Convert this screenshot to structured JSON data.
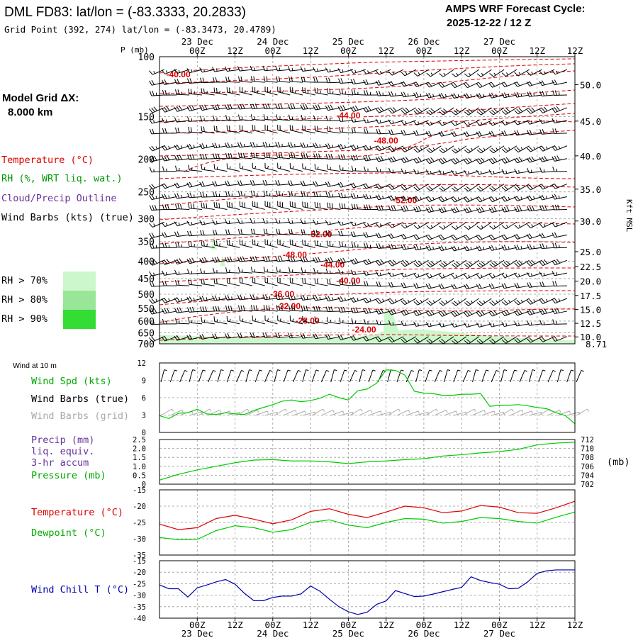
{
  "header": {
    "title": "DML FD83:  lat/lon = (-83.3333, 20.2833)",
    "subtitle": "Grid Point (392, 274) lat/lon = (-83.3473, 20.4789)",
    "forecast_label": "AMPS WRF Forecast Cycle:",
    "forecast_cycle": "2025-12-22 / 12  Z",
    "model_grid_label": "Model Grid ΔX:",
    "model_grid_value": "8.000 km"
  },
  "colors": {
    "temperature": "#dd0000",
    "rh": "#009900",
    "cloud": "#663399",
    "wind": "#000000",
    "wind_grid": "#aaaaaa",
    "dewpoint": "#00cc00",
    "windchill": "#0000aa",
    "grid": "#999999",
    "rh70": "#ccf7cc",
    "rh80": "#99e699",
    "rh90": "#33dd33"
  },
  "legend_upper": {
    "temperature": "Temperature (°C)",
    "rh": "RH (%, WRT liq. wat.)",
    "cloud": "Cloud/Precip Outline",
    "wind": "Wind Barbs (kts) (true)",
    "rh70": "RH > 70%",
    "rh80": "RH > 80%",
    "rh90": "RH > 90%"
  },
  "legend_lower": {
    "wind10m": "Wind at 10 m",
    "windspd": "Wind Spd (kts)",
    "windbarbs_true": "Wind Barbs (true)",
    "windbarbs_grid": "Wind Barbs (grid)",
    "precip": "Precip (mm)",
    "liq": "liq. equiv.",
    "accum": "3-hr accum",
    "pressure": "Pressure (mb)",
    "temperature": "Temperature (°C)",
    "dewpoint": "Dewpoint (°C)",
    "windchill": "Wind Chill T (°C)",
    "mb_unit": "(mb)"
  },
  "chart_data": {
    "type": "line",
    "time_axis": {
      "hours_range": [
        -6,
        126
      ],
      "tick_hours": [
        6,
        18,
        30,
        42,
        54,
        66,
        78,
        90,
        102,
        114,
        126
      ],
      "tick_labels": [
        "00Z",
        "12Z",
        "00Z",
        "12Z",
        "00Z",
        "12Z",
        "00Z",
        "12Z",
        "00Z",
        "12Z",
        "12Z"
      ],
      "date_hours": [
        6,
        30,
        54,
        78,
        102
      ],
      "date_labels": [
        "23 Dec",
        "24 Dec",
        "25 Dec",
        "26 Dec",
        "27 Dec"
      ]
    },
    "upper_panel": {
      "ylabel": "P (mb)",
      "p_range": [
        700,
        100
      ],
      "p_ticks": [
        100,
        150,
        200,
        250,
        300,
        350,
        400,
        450,
        500,
        550,
        600,
        650,
        700
      ],
      "kft_ticks": [
        50.0,
        45.0,
        40.0,
        35.0,
        30.0,
        25.0,
        22.5,
        20.0,
        17.5,
        15.0,
        12.5,
        10.0
      ],
      "kft_tick_labels": [
        "50.0",
        "45.0",
        "40.0",
        "35.0",
        "30.0",
        "25.0",
        "22.5",
        "20.0",
        "17.5",
        "15.0",
        "12.5",
        "10.0"
      ],
      "kft_surface_label": "8.71",
      "right_label": "Kft MSL",
      "temp_labels": [
        {
          "text": "-40.00",
          "hour": 0,
          "p": 115
        },
        {
          "text": "-44.00",
          "hour": 54,
          "p": 152
        },
        {
          "text": "-48.00",
          "hour": 66,
          "p": 180
        },
        {
          "text": "-52.00",
          "hour": 72,
          "p": 270
        },
        {
          "text": "-52.00",
          "hour": 45,
          "p": 340
        },
        {
          "text": "-48.00",
          "hour": 37,
          "p": 390
        },
        {
          "text": "-44.00",
          "hour": 49,
          "p": 418
        },
        {
          "text": "-40.00",
          "hour": 54,
          "p": 465
        },
        {
          "text": "-36.00",
          "hour": 33,
          "p": 510
        },
        {
          "text": "-32.00",
          "hour": 35,
          "p": 553
        },
        {
          "text": "-28.00",
          "hour": 41,
          "p": 610
        },
        {
          "text": "-24.00",
          "hour": 59,
          "p": 648
        }
      ]
    },
    "wind_panel": {
      "ylim": [
        0,
        12
      ],
      "yticks": [
        0,
        3,
        6,
        9,
        12
      ],
      "hours": [
        -6,
        -3,
        0,
        3,
        6,
        9,
        12,
        15,
        18,
        21,
        24,
        27,
        30,
        33,
        36,
        39,
        42,
        45,
        48,
        51,
        54,
        57,
        60,
        63,
        66,
        69,
        72,
        75,
        78,
        81,
        84,
        87,
        90,
        93,
        96,
        99,
        102,
        105,
        108,
        111,
        114,
        117,
        120,
        123,
        126
      ],
      "wind_speed": [
        2.9,
        2.4,
        3.3,
        3.4,
        4.0,
        3.2,
        3.1,
        3.4,
        3.2,
        3.1,
        3.8,
        4.3,
        4.8,
        5.4,
        5.6,
        5.3,
        5.5,
        5.9,
        6.6,
        6.0,
        5.6,
        7.2,
        7.5,
        8.5,
        10.8,
        10.7,
        9.9,
        7.1,
        6.8,
        6.7,
        6.4,
        6.4,
        6.6,
        6.6,
        6.7,
        4.5,
        4.7,
        4.7,
        4.8,
        4.6,
        4.3,
        4.1,
        3.4,
        2.9,
        1.5
      ]
    },
    "pressure_panel": {
      "precip_ylim": [
        0,
        2.5
      ],
      "precip_ticks": [
        0,
        0.5,
        1.0,
        1.5,
        2.0,
        2.5
      ],
      "precip_tick_labels": [
        "0",
        "0.5",
        "1.0",
        "1.5",
        "2.0",
        "2.5"
      ],
      "pressure_ylim": [
        702,
        712
      ],
      "pressure_ticks": [
        702,
        704,
        706,
        708,
        710,
        712
      ],
      "hours": [
        -6,
        0,
        6,
        12,
        18,
        24,
        30,
        36,
        42,
        48,
        54,
        60,
        66,
        72,
        78,
        84,
        90,
        96,
        102,
        108,
        114,
        120,
        126
      ],
      "pressure": [
        702.9,
        704.2,
        705.2,
        706.0,
        706.8,
        707.4,
        707.5,
        707.2,
        707.2,
        707.0,
        706.6,
        707.0,
        707.2,
        707.5,
        707.7,
        708.3,
        708.6,
        709.0,
        709.3,
        709.8,
        710.8,
        711.2,
        711.4
      ]
    },
    "temp_panel": {
      "ylim": [
        -35,
        -15
      ],
      "yticks": [
        -35,
        -30,
        -25,
        -20,
        -15
      ],
      "hours": [
        -6,
        0,
        6,
        12,
        18,
        24,
        30,
        36,
        42,
        48,
        54,
        60,
        66,
        72,
        78,
        84,
        90,
        96,
        102,
        108,
        114,
        120,
        126
      ],
      "temperature": [
        -25.5,
        -27.2,
        -26.6,
        -23.8,
        -22.8,
        -24.0,
        -25.4,
        -24.2,
        -21.6,
        -20.8,
        -22.5,
        -23.5,
        -21.8,
        -20.0,
        -20.5,
        -22.0,
        -21.5,
        -19.8,
        -20.3,
        -22.0,
        -22.2,
        -20.5,
        -18.5
      ],
      "dewpoint": [
        -29.6,
        -30.3,
        -30.2,
        -27.5,
        -26.0,
        -26.6,
        -28.0,
        -27.2,
        -25.0,
        -24.2,
        -25.8,
        -26.6,
        -25.0,
        -23.8,
        -24.0,
        -25.2,
        -24.7,
        -23.5,
        -23.8,
        -24.7,
        -25.2,
        -23.4,
        -21.8
      ]
    },
    "windchill_panel": {
      "ylim": [
        -40,
        -15
      ],
      "yticks": [
        -40,
        -35,
        -30,
        -25,
        -20,
        -15
      ],
      "hours": [
        -6,
        -3,
        0,
        3,
        6,
        9,
        12,
        15,
        18,
        21,
        24,
        27,
        30,
        33,
        36,
        39,
        42,
        45,
        48,
        51,
        54,
        57,
        60,
        63,
        66,
        69,
        72,
        75,
        78,
        81,
        84,
        87,
        90,
        93,
        96,
        99,
        102,
        105,
        108,
        111,
        114,
        117,
        120,
        123,
        126
      ],
      "wind_chill": [
        -25.5,
        -27.2,
        -27.2,
        -30.8,
        -26.8,
        -25.6,
        -24.2,
        -23.2,
        -25.2,
        -29.2,
        -32.4,
        -32.4,
        -31.0,
        -30.4,
        -30.4,
        -29.4,
        -26.0,
        -28.3,
        -31.8,
        -35.0,
        -37.2,
        -38.4,
        -37.4,
        -34.0,
        -32.5,
        -28.0,
        -29.3,
        -30.6,
        -30.4,
        -29.5,
        -28.5,
        -27.5,
        -26.6,
        -22.0,
        -23.6,
        -24.5,
        -25.2,
        -27.2,
        -27.0,
        -24.2,
        -20.5,
        -19.4,
        -19.0,
        -19.0,
        -19.0
      ]
    }
  }
}
